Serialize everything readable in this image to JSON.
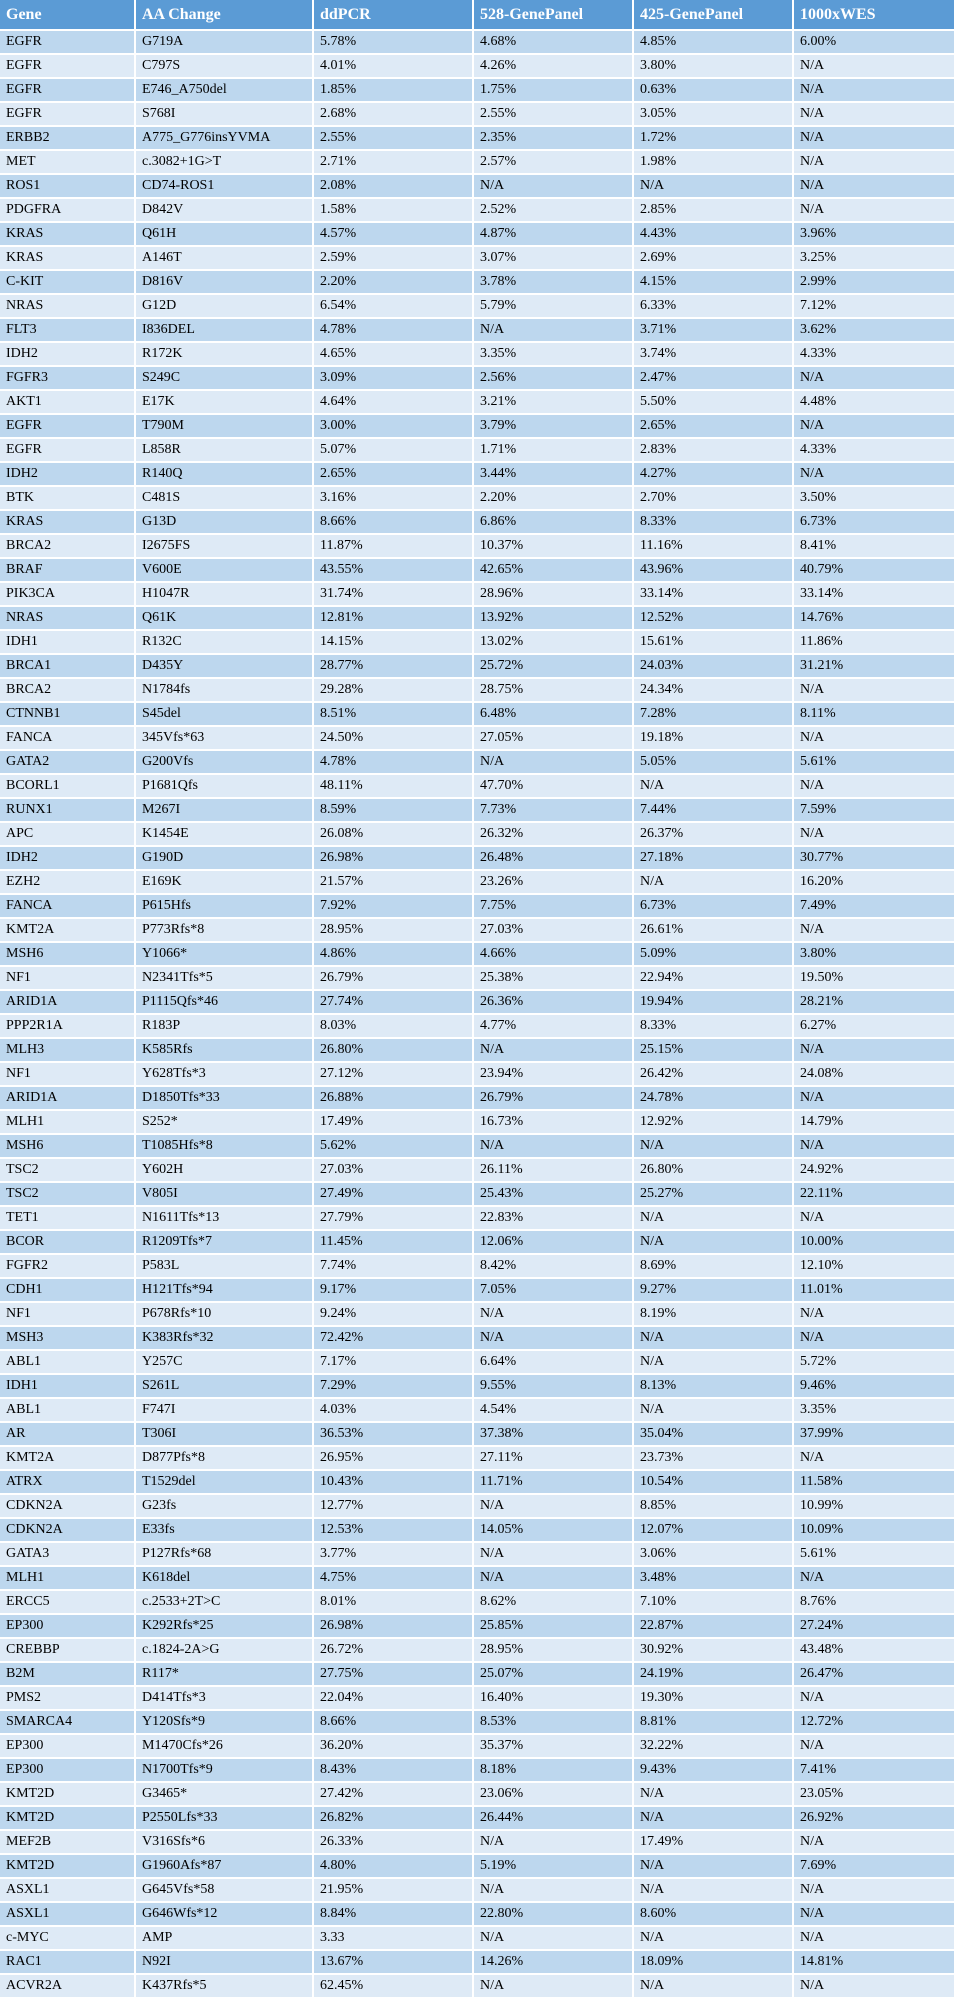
{
  "colors": {
    "header_bg": "#5B9BD5",
    "header_text": "#FFFFFF",
    "row_band_dark": "#BDD7EE",
    "row_band_light": "#DEEAF6",
    "grid_border": "#FFFFFF",
    "body_text": "#000000"
  },
  "table": {
    "columns": [
      "Gene",
      "AA Change",
      "ddPCR",
      "528-GenePanel",
      "425-GenePanel",
      "1000xWES"
    ],
    "rows": [
      [
        "EGFR",
        "G719A",
        "5.78%",
        "4.68%",
        "4.85%",
        "6.00%"
      ],
      [
        "EGFR",
        "C797S",
        "4.01%",
        "4.26%",
        "3.80%",
        "N/A"
      ],
      [
        "EGFR",
        "E746_A750del",
        "1.85%",
        "1.75%",
        "0.63%",
        "N/A"
      ],
      [
        "EGFR",
        "S768I",
        "2.68%",
        "2.55%",
        "3.05%",
        "N/A"
      ],
      [
        "ERBB2",
        "A775_G776insYVMA",
        "2.55%",
        "2.35%",
        "1.72%",
        "N/A"
      ],
      [
        "MET",
        "c.3082+1G>T",
        "2.71%",
        "2.57%",
        "1.98%",
        "N/A"
      ],
      [
        "ROS1",
        "CD74-ROS1",
        "2.08%",
        "N/A",
        "N/A",
        "N/A"
      ],
      [
        "PDGFRA",
        "D842V",
        "1.58%",
        "2.52%",
        "2.85%",
        "N/A"
      ],
      [
        "KRAS",
        "Q61H",
        "4.57%",
        "4.87%",
        "4.43%",
        "3.96%"
      ],
      [
        "KRAS",
        "A146T",
        "2.59%",
        "3.07%",
        "2.69%",
        "3.25%"
      ],
      [
        "C-KIT",
        "D816V",
        "2.20%",
        "3.78%",
        "4.15%",
        "2.99%"
      ],
      [
        "NRAS",
        "G12D",
        "6.54%",
        "5.79%",
        "6.33%",
        "7.12%"
      ],
      [
        "FLT3",
        "I836DEL",
        "4.78%",
        "N/A",
        "3.71%",
        "3.62%"
      ],
      [
        "IDH2",
        "R172K",
        "4.65%",
        "3.35%",
        "3.74%",
        "4.33%"
      ],
      [
        "FGFR3",
        "S249C",
        "3.09%",
        "2.56%",
        "2.47%",
        "N/A"
      ],
      [
        "AKT1",
        "E17K",
        "4.64%",
        "3.21%",
        "5.50%",
        "4.48%"
      ],
      [
        "EGFR",
        "T790M",
        "3.00%",
        "3.79%",
        "2.65%",
        "N/A"
      ],
      [
        "EGFR",
        "L858R",
        "5.07%",
        "1.71%",
        "2.83%",
        "4.33%"
      ],
      [
        "IDH2",
        "R140Q",
        "2.65%",
        "3.44%",
        "4.27%",
        "N/A"
      ],
      [
        "BTK",
        "C481S",
        "3.16%",
        "2.20%",
        "2.70%",
        "3.50%"
      ],
      [
        "KRAS",
        "G13D",
        "8.66%",
        "6.86%",
        "8.33%",
        "6.73%"
      ],
      [
        "BRCA2",
        "I2675FS",
        "11.87%",
        "10.37%",
        "11.16%",
        "8.41%"
      ],
      [
        "BRAF",
        "V600E",
        "43.55%",
        "42.65%",
        "43.96%",
        "40.79%"
      ],
      [
        "PIK3CA",
        "H1047R",
        "31.74%",
        "28.96%",
        "33.14%",
        "33.14%"
      ],
      [
        "NRAS",
        "Q61K",
        "12.81%",
        "13.92%",
        "12.52%",
        "14.76%"
      ],
      [
        "IDH1",
        "R132C",
        "14.15%",
        "13.02%",
        "15.61%",
        "11.86%"
      ],
      [
        "BRCA1",
        "D435Y",
        "28.77%",
        "25.72%",
        "24.03%",
        "31.21%"
      ],
      [
        "BRCA2",
        "N1784fs",
        "29.28%",
        "28.75%",
        "24.34%",
        "N/A"
      ],
      [
        "CTNNB1",
        "S45del",
        "8.51%",
        "6.48%",
        "7.28%",
        "8.11%"
      ],
      [
        "FANCA",
        "345Vfs*63",
        "24.50%",
        "27.05%",
        "19.18%",
        "N/A"
      ],
      [
        "GATA2",
        "G200Vfs",
        "4.78%",
        "N/A",
        "5.05%",
        "5.61%"
      ],
      [
        "BCORL1",
        "P1681Qfs",
        "48.11%",
        "47.70%",
        "N/A",
        "N/A"
      ],
      [
        "RUNX1",
        "M267I",
        "8.59%",
        "7.73%",
        "7.44%",
        "7.59%"
      ],
      [
        "APC",
        "K1454E",
        "26.08%",
        "26.32%",
        "26.37%",
        "N/A"
      ],
      [
        "IDH2",
        "G190D",
        "26.98%",
        "26.48%",
        "27.18%",
        "30.77%"
      ],
      [
        "EZH2",
        "E169K",
        "21.57%",
        "23.26%",
        "N/A",
        "16.20%"
      ],
      [
        "FANCA",
        "P615Hfs",
        "7.92%",
        "7.75%",
        "6.73%",
        "7.49%"
      ],
      [
        "KMT2A",
        "P773Rfs*8",
        "28.95%",
        "27.03%",
        "26.61%",
        "N/A"
      ],
      [
        "MSH6",
        "Y1066*",
        "4.86%",
        "4.66%",
        "5.09%",
        "3.80%"
      ],
      [
        "NF1",
        "N2341Tfs*5",
        "26.79%",
        "25.38%",
        "22.94%",
        "19.50%"
      ],
      [
        "ARID1A",
        "P1115Qfs*46",
        "27.74%",
        "26.36%",
        "19.94%",
        "28.21%"
      ],
      [
        "PPP2R1A",
        "R183P",
        "8.03%",
        "4.77%",
        "8.33%",
        "6.27%"
      ],
      [
        "MLH3",
        "K585Rfs",
        "26.80%",
        "N/A",
        "25.15%",
        "N/A"
      ],
      [
        "NF1",
        "Y628Tfs*3",
        "27.12%",
        "23.94%",
        "26.42%",
        "24.08%"
      ],
      [
        "ARID1A",
        "D1850Tfs*33",
        "26.88%",
        "26.79%",
        "24.78%",
        "N/A"
      ],
      [
        "MLH1",
        "S252*",
        "17.49%",
        "16.73%",
        "12.92%",
        "14.79%"
      ],
      [
        "MSH6",
        "T1085Hfs*8",
        "5.62%",
        "N/A",
        "N/A",
        "N/A"
      ],
      [
        "TSC2",
        "Y602H",
        "27.03%",
        "26.11%",
        "26.80%",
        "24.92%"
      ],
      [
        "TSC2",
        "V805I",
        "27.49%",
        "25.43%",
        "25.27%",
        "22.11%"
      ],
      [
        "TET1",
        "N1611Tfs*13",
        "27.79%",
        "22.83%",
        "N/A",
        "N/A"
      ],
      [
        "BCOR",
        "R1209Tfs*7",
        "11.45%",
        "12.06%",
        "N/A",
        "10.00%"
      ],
      [
        "FGFR2",
        "P583L",
        "7.74%",
        "8.42%",
        "8.69%",
        "12.10%"
      ],
      [
        "CDH1",
        "H121Tfs*94",
        "9.17%",
        "7.05%",
        "9.27%",
        "11.01%"
      ],
      [
        "NF1",
        "P678Rfs*10",
        "9.24%",
        "N/A",
        "8.19%",
        "N/A"
      ],
      [
        "MSH3",
        "K383Rfs*32",
        "72.42%",
        "N/A",
        "N/A",
        "N/A"
      ],
      [
        "ABL1",
        "Y257C",
        "7.17%",
        "6.64%",
        "N/A",
        "5.72%"
      ],
      [
        "IDH1",
        "S261L",
        "7.29%",
        "9.55%",
        "8.13%",
        "9.46%"
      ],
      [
        "ABL1",
        "F747I",
        "4.03%",
        "4.54%",
        "N/A",
        "3.35%"
      ],
      [
        "AR",
        "T306I",
        "36.53%",
        "37.38%",
        "35.04%",
        "37.99%"
      ],
      [
        "KMT2A",
        "D877Pfs*8",
        "26.95%",
        "27.11%",
        "23.73%",
        "N/A"
      ],
      [
        "ATRX",
        "T1529del",
        "10.43%",
        "11.71%",
        "10.54%",
        "11.58%"
      ],
      [
        "CDKN2A",
        "G23fs",
        "12.77%",
        "N/A",
        "8.85%",
        "10.99%"
      ],
      [
        "CDKN2A",
        "E33fs",
        "12.53%",
        "14.05%",
        "12.07%",
        "10.09%"
      ],
      [
        "GATA3",
        "P127Rfs*68",
        "3.77%",
        "N/A",
        "3.06%",
        "5.61%"
      ],
      [
        "MLH1",
        "K618del",
        "4.75%",
        "N/A",
        "3.48%",
        "N/A"
      ],
      [
        "ERCC5",
        "c.2533+2T>C",
        "8.01%",
        "8.62%",
        "7.10%",
        "8.76%"
      ],
      [
        "EP300",
        "K292Rfs*25",
        "26.98%",
        "25.85%",
        "22.87%",
        "27.24%"
      ],
      [
        "CREBBP",
        "c.1824-2A>G",
        "26.72%",
        "28.95%",
        "30.92%",
        "43.48%"
      ],
      [
        "B2M",
        "R117*",
        "27.75%",
        "25.07%",
        "24.19%",
        "26.47%"
      ],
      [
        "PMS2",
        "D414Tfs*3",
        "22.04%",
        "16.40%",
        "19.30%",
        "N/A"
      ],
      [
        "SMARCA4",
        "Y120Sfs*9",
        "8.66%",
        "8.53%",
        "8.81%",
        "12.72%"
      ],
      [
        "EP300",
        "M1470Cfs*26",
        "36.20%",
        "35.37%",
        "32.22%",
        "N/A"
      ],
      [
        "EP300",
        "N1700Tfs*9",
        "8.43%",
        "8.18%",
        "9.43%",
        "7.41%"
      ],
      [
        "KMT2D",
        "G3465*",
        "27.42%",
        "23.06%",
        "N/A",
        "23.05%"
      ],
      [
        "KMT2D",
        "P2550Lfs*33",
        "26.82%",
        "26.44%",
        "N/A",
        "26.92%"
      ],
      [
        "MEF2B",
        "V316Sfs*6",
        "26.33%",
        "N/A",
        "17.49%",
        "N/A"
      ],
      [
        "KMT2D",
        "G1960Afs*87",
        "4.80%",
        "5.19%",
        "N/A",
        "7.69%"
      ],
      [
        "ASXL1",
        "G645Vfs*58",
        "21.95%",
        "N/A",
        "N/A",
        "N/A"
      ],
      [
        "ASXL1",
        "G646Wfs*12",
        "8.84%",
        "22.80%",
        "8.60%",
        "N/A"
      ],
      [
        "c-MYC",
        "AMP",
        "3.33",
        "N/A",
        "N/A",
        "N/A"
      ],
      [
        "RAC1",
        "N92I",
        "13.67%",
        "14.26%",
        "18.09%",
        "14.81%"
      ],
      [
        "ACVR2A",
        "K437Rfs*5",
        "62.45%",
        "N/A",
        "N/A",
        "N/A"
      ]
    ]
  }
}
